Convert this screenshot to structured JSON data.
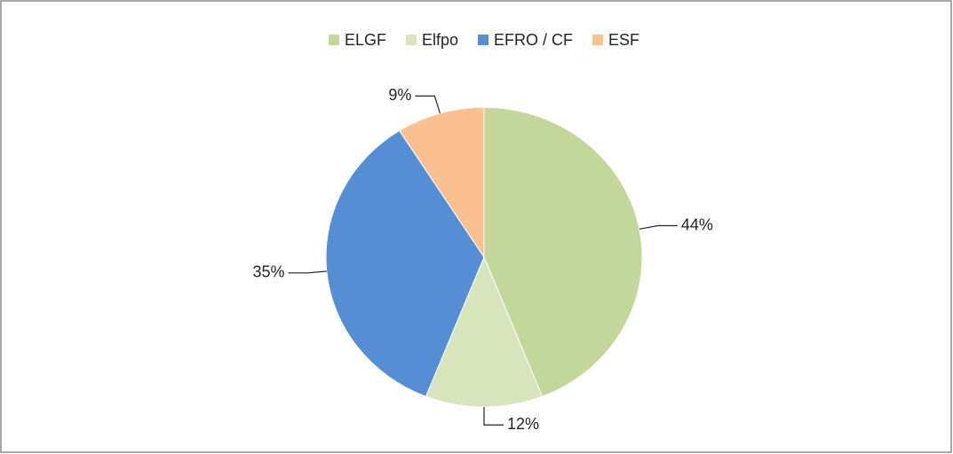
{
  "chart_data": {
    "type": "pie",
    "categories": [
      "ELGF",
      "Elfpo",
      "EFRO / CF",
      "ESF"
    ],
    "values": [
      44,
      12,
      35,
      9
    ],
    "value_labels": [
      "44%",
      "12%",
      "35%",
      "9%"
    ],
    "colors": [
      "#c4d79b",
      "#d8e4bc",
      "#558ed5",
      "#fac090"
    ],
    "legend": "top"
  }
}
